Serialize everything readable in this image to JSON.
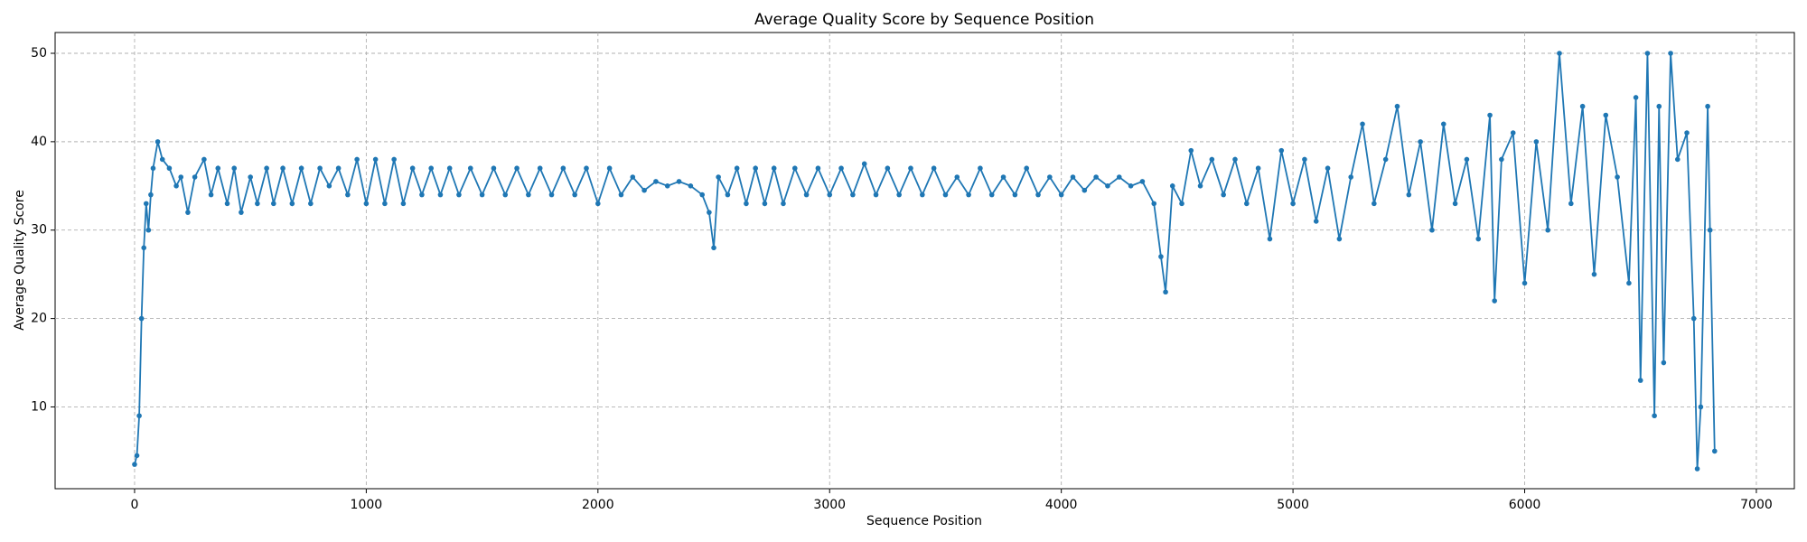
{
  "chart_data": {
    "type": "line",
    "title": "Average Quality Score by Sequence Position",
    "x_label": "Sequence Position",
    "y_label": "Average Quality Score",
    "color": "#1f77b4",
    "grid": true,
    "xlim": [
      -343,
      7164
    ],
    "ylim": [
      0.75,
      52.35
    ],
    "xticks": [
      0,
      1000,
      2000,
      3000,
      4000,
      5000,
      6000,
      7000
    ],
    "yticks": [
      10,
      20,
      30,
      40,
      50
    ],
    "x": [
      0,
      10,
      20,
      30,
      40,
      50,
      60,
      70,
      80,
      100,
      120,
      150,
      180,
      200,
      230,
      260,
      300,
      330,
      360,
      400,
      430,
      460,
      500,
      530,
      570,
      600,
      640,
      680,
      720,
      760,
      800,
      840,
      880,
      920,
      960,
      1000,
      1040,
      1080,
      1120,
      1160,
      1200,
      1240,
      1280,
      1320,
      1360,
      1400,
      1450,
      1500,
      1550,
      1600,
      1650,
      1700,
      1750,
      1800,
      1850,
      1900,
      1950,
      2000,
      2050,
      2100,
      2150,
      2200,
      2250,
      2300,
      2350,
      2400,
      2450,
      2480,
      2500,
      2520,
      2560,
      2600,
      2640,
      2680,
      2720,
      2760,
      2800,
      2850,
      2900,
      2950,
      3000,
      3050,
      3100,
      3150,
      3200,
      3250,
      3300,
      3350,
      3400,
      3450,
      3500,
      3550,
      3600,
      3650,
      3700,
      3750,
      3800,
      3850,
      3900,
      3950,
      4000,
      4050,
      4100,
      4150,
      4200,
      4250,
      4300,
      4350,
      4400,
      4430,
      4450,
      4480,
      4520,
      4560,
      4600,
      4650,
      4700,
      4750,
      4800,
      4850,
      4900,
      4950,
      5000,
      5050,
      5100,
      5150,
      5200,
      5250,
      5300,
      5350,
      5400,
      5450,
      5500,
      5550,
      5600,
      5650,
      5700,
      5750,
      5800,
      5850,
      5870,
      5900,
      5950,
      6000,
      6050,
      6100,
      6150,
      6200,
      6250,
      6300,
      6350,
      6400,
      6450,
      6480,
      6500,
      6530,
      6560,
      6580,
      6600,
      6630,
      6660,
      6700,
      6730,
      6745,
      6760,
      6790,
      6800,
      6820
    ],
    "values": [
      3.5,
      4.5,
      9,
      20,
      28,
      33,
      30,
      34,
      37,
      40,
      38,
      37,
      35,
      36,
      32,
      36,
      38,
      34,
      37,
      33,
      37,
      32,
      36,
      33,
      37,
      33,
      37,
      33,
      37,
      33,
      37,
      35,
      37,
      34,
      38,
      33,
      38,
      33,
      38,
      33,
      37,
      34,
      37,
      34,
      37,
      34,
      37,
      34,
      37,
      34,
      37,
      34,
      37,
      34,
      37,
      34,
      37,
      33,
      37,
      34,
      36,
      34.5,
      35.5,
      35,
      35.5,
      35,
      34,
      32,
      28,
      36,
      34,
      37,
      33,
      37,
      33,
      37,
      33,
      37,
      34,
      37,
      34,
      37,
      34,
      37.5,
      34,
      37,
      34,
      37,
      34,
      37,
      34,
      36,
      34,
      37,
      34,
      36,
      34,
      37,
      34,
      36,
      34,
      36,
      34.5,
      36,
      35,
      36,
      35,
      35.5,
      33,
      27,
      23,
      35,
      33,
      39,
      35,
      38,
      34,
      38,
      33,
      37,
      29,
      39,
      33,
      38,
      31,
      37,
      29,
      36,
      42,
      33,
      38,
      44,
      34,
      40,
      30,
      42,
      33,
      38,
      29,
      43,
      22,
      38,
      41,
      24,
      40,
      30,
      50,
      33,
      44,
      25,
      43,
      36,
      24,
      45,
      13,
      50,
      9,
      44,
      15,
      50,
      38,
      41,
      20,
      3,
      10,
      44,
      30,
      5
    ]
  }
}
